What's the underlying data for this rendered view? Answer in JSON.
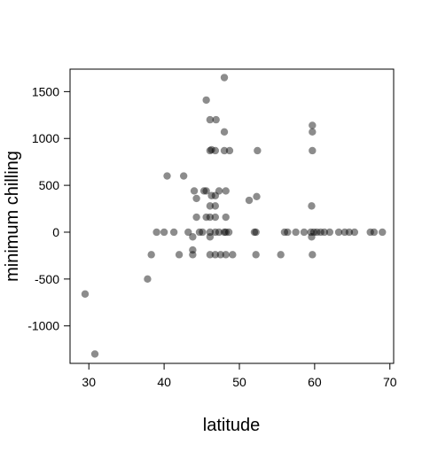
{
  "chart_data": {
    "type": "scatter",
    "title": "",
    "xlabel": "latitude",
    "ylabel": "minimum chilling",
    "xlim": [
      27.5,
      70.5
    ],
    "ylim": [
      -1400,
      1740
    ],
    "xticks": [
      30,
      40,
      50,
      60,
      70
    ],
    "yticks": [
      -1000,
      -500,
      0,
      500,
      1000,
      1500
    ],
    "grid": false,
    "legend": "none",
    "point_color": "#000000",
    "point_opacity": 0.45,
    "series": [
      {
        "points": [
          [
            29.5,
            -660
          ],
          [
            30.8,
            -1300
          ],
          [
            37.8,
            -500
          ],
          [
            38.3,
            -240
          ],
          [
            39.0,
            0
          ],
          [
            40.0,
            0
          ],
          [
            40.4,
            600
          ],
          [
            41.3,
            0
          ],
          [
            42.0,
            -240
          ],
          [
            42.6,
            600
          ],
          [
            43.2,
            0
          ],
          [
            43.8,
            -50
          ],
          [
            43.8,
            -190
          ],
          [
            43.8,
            -240
          ],
          [
            44.0,
            440
          ],
          [
            44.3,
            160
          ],
          [
            44.3,
            360
          ],
          [
            44.7,
            0
          ],
          [
            45.1,
            0
          ],
          [
            45.3,
            440
          ],
          [
            45.6,
            1410
          ],
          [
            45.6,
            160
          ],
          [
            45.6,
            440
          ],
          [
            46.1,
            0
          ],
          [
            46.1,
            -50
          ],
          [
            46.1,
            -240
          ],
          [
            46.1,
            160
          ],
          [
            46.1,
            280
          ],
          [
            46.1,
            870
          ],
          [
            46.1,
            1200
          ],
          [
            46.3,
            390
          ],
          [
            46.3,
            880
          ],
          [
            46.8,
            0
          ],
          [
            46.8,
            -240
          ],
          [
            46.8,
            160
          ],
          [
            46.8,
            280
          ],
          [
            46.8,
            390
          ],
          [
            46.8,
            870
          ],
          [
            46.9,
            1200
          ],
          [
            47.3,
            0
          ],
          [
            47.3,
            440
          ],
          [
            47.5,
            -240
          ],
          [
            48.0,
            0
          ],
          [
            48.0,
            870
          ],
          [
            48.0,
            1070
          ],
          [
            48.0,
            1650
          ],
          [
            48.2,
            0
          ],
          [
            48.2,
            160
          ],
          [
            48.2,
            440
          ],
          [
            48.2,
            -240
          ],
          [
            48.6,
            0
          ],
          [
            48.7,
            870
          ],
          [
            49.1,
            -240
          ],
          [
            51.3,
            340
          ],
          [
            52.0,
            0
          ],
          [
            52.2,
            0
          ],
          [
            52.2,
            -240
          ],
          [
            52.3,
            380
          ],
          [
            52.4,
            870
          ],
          [
            55.5,
            -240
          ],
          [
            56.0,
            0
          ],
          [
            56.4,
            0
          ],
          [
            57.5,
            0
          ],
          [
            58.6,
            0
          ],
          [
            59.5,
            0
          ],
          [
            59.6,
            -50
          ],
          [
            59.6,
            280
          ],
          [
            59.7,
            -240
          ],
          [
            59.7,
            870
          ],
          [
            59.7,
            1070
          ],
          [
            59.7,
            1140
          ],
          [
            59.9,
            0
          ],
          [
            60.3,
            0
          ],
          [
            60.8,
            0
          ],
          [
            61.3,
            0
          ],
          [
            62.0,
            0
          ],
          [
            63.2,
            0
          ],
          [
            64.0,
            0
          ],
          [
            64.6,
            0
          ],
          [
            65.3,
            0
          ],
          [
            67.4,
            0
          ],
          [
            67.9,
            0
          ],
          [
            69.0,
            0
          ]
        ]
      }
    ]
  }
}
